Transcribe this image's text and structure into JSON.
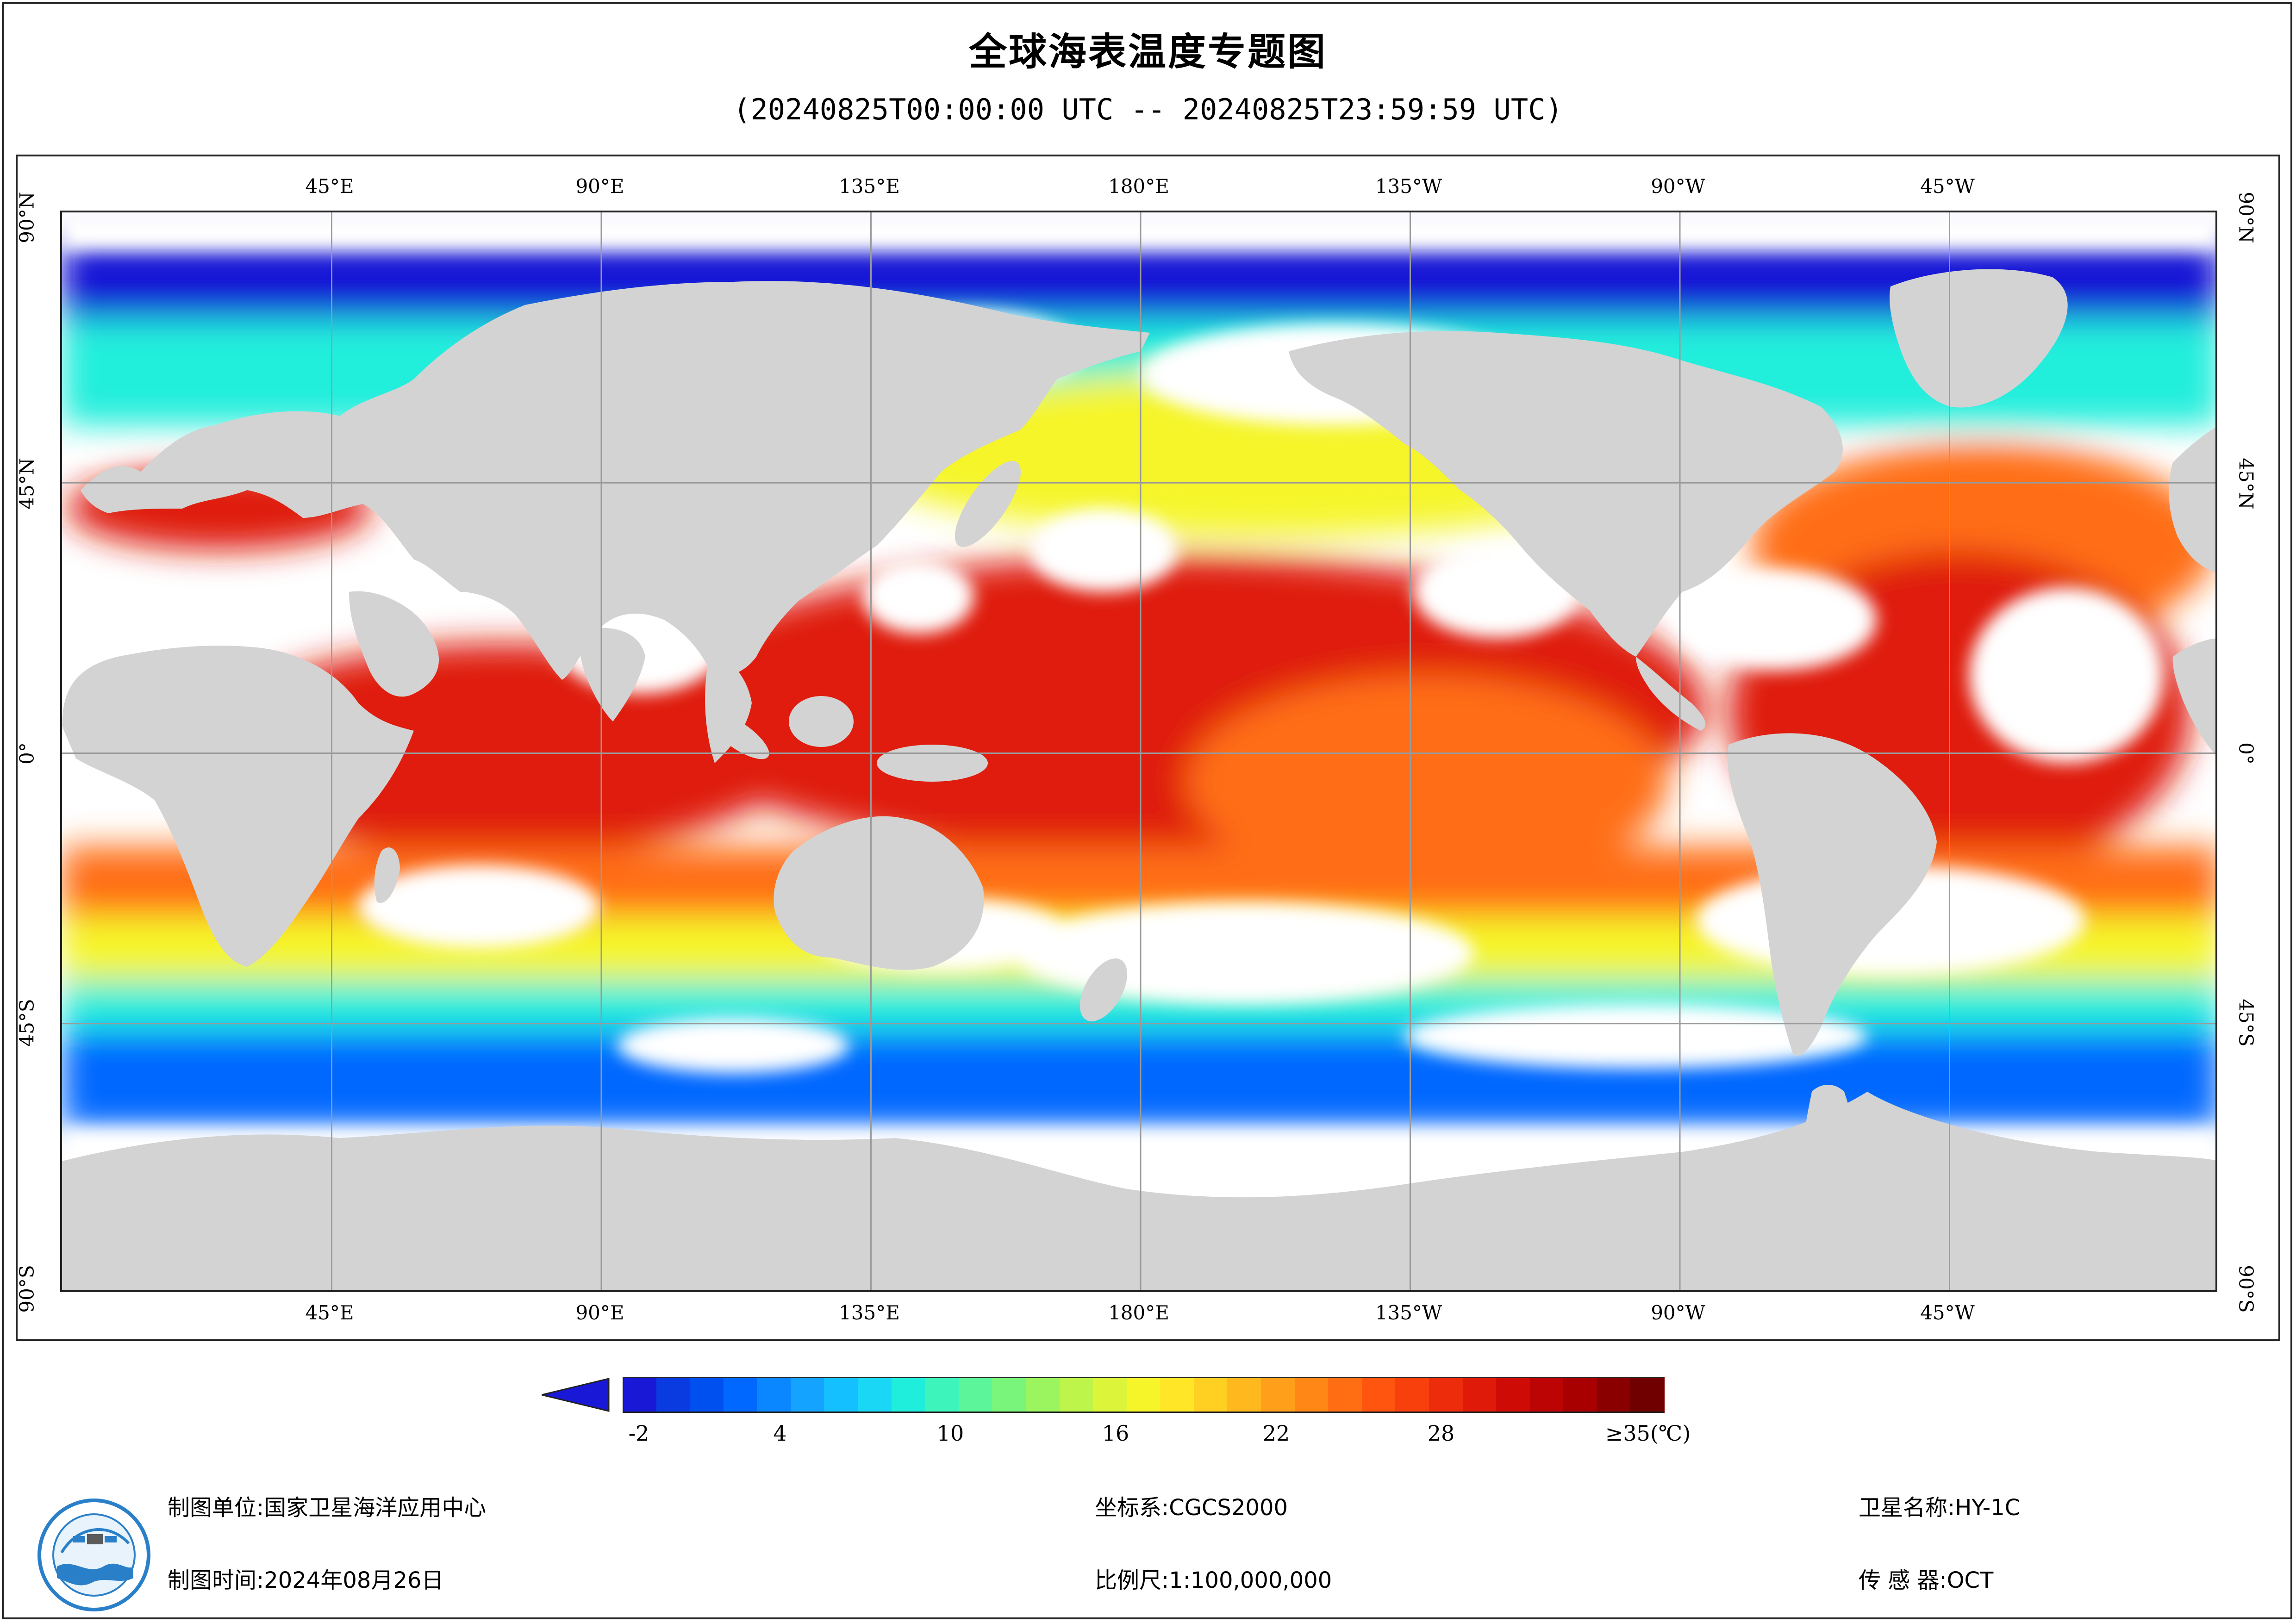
{
  "header": {
    "title": "全球海表温度专题图",
    "subtitle": "(20240825T00:00:00 UTC -- 20240825T23:59:59 UTC)"
  },
  "map": {
    "longitude_labels": [
      "45°E",
      "90°E",
      "135°E",
      "180°E",
      "135°W",
      "90°W",
      "45°W"
    ],
    "latitude_labels": [
      "90°N",
      "45°N",
      "0°",
      "45°S",
      "90°S"
    ],
    "colors": {
      "land": "#d3d3d3",
      "no_data": "#ffffff",
      "graticule": "#9a9a9a"
    },
    "temperature_fields": [
      {
        "name": "arctic-cold",
        "value_c": -2
      },
      {
        "name": "subpolar",
        "value_c": 8
      },
      {
        "name": "midlat",
        "value_c": 16
      },
      {
        "name": "subtropical",
        "value_c": 24
      },
      {
        "name": "tropical",
        "value_c": 29
      },
      {
        "name": "southern-cold",
        "value_c": 2
      }
    ]
  },
  "legend": {
    "ticks": [
      "-2",
      "4",
      "10",
      "16",
      "22",
      "28",
      "≥35(℃)"
    ],
    "unit": "℃",
    "range": [
      -2,
      35
    ],
    "colors": [
      "#1818d6",
      "#0a3be0",
      "#0050f0",
      "#0068ff",
      "#0a86ff",
      "#14a3ff",
      "#14c0ff",
      "#1ad8f5",
      "#20eedc",
      "#3df5bb",
      "#5cf59a",
      "#7af57c",
      "#9af55f",
      "#bdf54a",
      "#dcf53a",
      "#f5f52a",
      "#ffe626",
      "#ffcf22",
      "#ffb81e",
      "#ff9f1a",
      "#ff8716",
      "#ff6e12",
      "#ff550e",
      "#f7400c",
      "#ec2c0a",
      "#df1a08",
      "#cf0b06",
      "#bd0404",
      "#a80000",
      "#8a0000",
      "#700000"
    ],
    "arrow_low_color": "#1818d6",
    "arrow_high_color": "#7a0000"
  },
  "footer": {
    "producer_label": "制图单位:",
    "producer_value": "国家卫星海洋应用中心",
    "date_label": "制图时间:",
    "date_value": "2024年08月26日",
    "crs_label": "坐标系:",
    "crs_value": "CGCS2000",
    "scale_label": "比例尺:",
    "scale_value": "1:100,000,000",
    "satellite_label": "卫星名称:",
    "satellite_value": "HY-1C",
    "sensor_label": "传 感 器:",
    "sensor_value": "OCT"
  }
}
